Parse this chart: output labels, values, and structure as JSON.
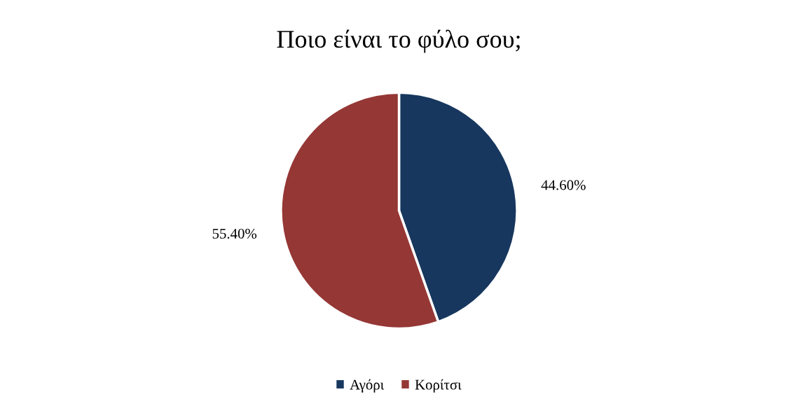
{
  "chart_data": {
    "type": "pie",
    "title": "Ποιο είναι το φύλο σου;",
    "categories": [
      "Αγόρι",
      "Κορίτσι"
    ],
    "values": [
      44.6,
      55.4
    ],
    "value_labels": [
      "44.60%",
      "55.40%"
    ],
    "colors": [
      "#17375e",
      "#953735"
    ],
    "legend": "bottom"
  }
}
